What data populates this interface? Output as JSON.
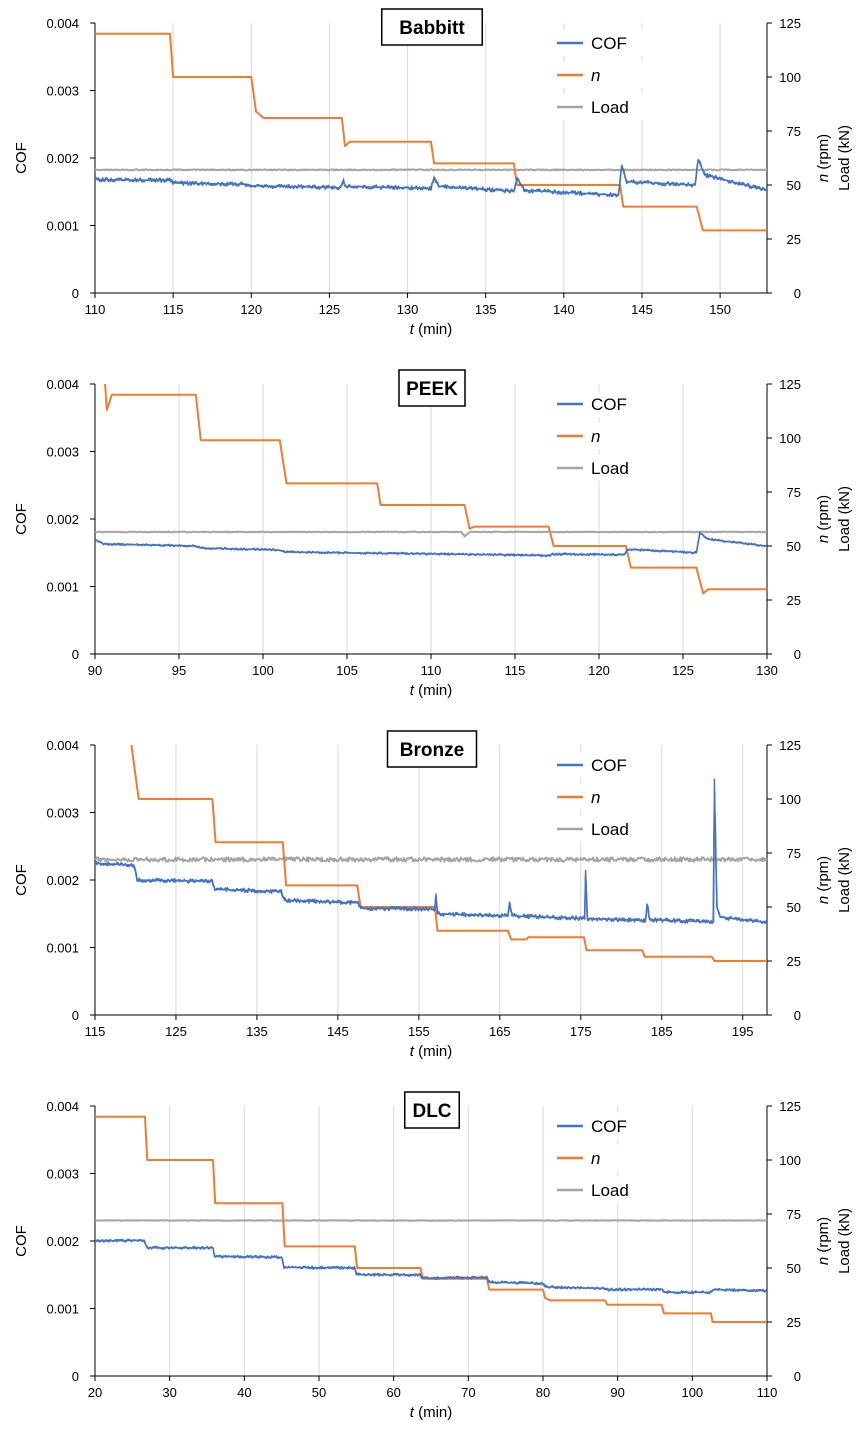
{
  "chart_data": [
    {
      "type": "line",
      "title": "Babbitt",
      "xlabel": "t (min)",
      "ylabel_left": "COF",
      "ylabel_right_1": "n (rpm)",
      "ylabel_right_2": "Load (kN)",
      "xlim": [
        110,
        153
      ],
      "xticks": [
        110,
        115,
        120,
        125,
        130,
        135,
        140,
        145,
        150
      ],
      "ylim_left": [
        0,
        0.004
      ],
      "yticks_left": [
        "0",
        "0.001",
        "0.002",
        "0.003",
        "0.004"
      ],
      "ylim_right": [
        0,
        125
      ],
      "yticks_right": [
        "0",
        "25",
        "50",
        "75",
        "100",
        "125"
      ],
      "grid": "vertical",
      "legend_position": "top-right",
      "series": [
        {
          "name": "COF",
          "axis": "left",
          "color": "#4472C4",
          "noise": 3e-05,
          "points": [
            [
              110,
              0.00168
            ],
            [
              114.8,
              0.00167
            ],
            [
              115,
              0.00163
            ],
            [
              119.8,
              0.00161
            ],
            [
              120,
              0.00159
            ],
            [
              125.7,
              0.00156
            ],
            [
              125.9,
              0.00168
            ],
            [
              126,
              0.00158
            ],
            [
              131.5,
              0.00155
            ],
            [
              131.7,
              0.00172
            ],
            [
              132,
              0.00158
            ],
            [
              136.8,
              0.00151
            ],
            [
              137,
              0.0017
            ],
            [
              137.5,
              0.00152
            ],
            [
              143.5,
              0.00145
            ],
            [
              143.7,
              0.0019
            ],
            [
              144,
              0.00165
            ],
            [
              148.4,
              0.0016
            ],
            [
              148.6,
              0.00198
            ],
            [
              149,
              0.00175
            ],
            [
              153,
              0.00152
            ]
          ]
        },
        {
          "name": "n",
          "axis": "right",
          "color": "#ED7D31",
          "noise": 0,
          "points": [
            [
              110,
              120
            ],
            [
              114.8,
              120
            ],
            [
              115,
              100
            ],
            [
              120,
              100
            ],
            [
              120.3,
              84
            ],
            [
              120.8,
              81
            ],
            [
              125.8,
              81
            ],
            [
              126,
              68
            ],
            [
              126.3,
              70
            ],
            [
              131.5,
              70
            ],
            [
              131.7,
              60
            ],
            [
              136.8,
              60
            ],
            [
              137,
              50
            ],
            [
              143.6,
              50
            ],
            [
              143.8,
              40
            ],
            [
              148.5,
              40
            ],
            [
              148.9,
              29
            ],
            [
              153,
              29
            ]
          ]
        },
        {
          "name": "Load",
          "axis": "right",
          "color": "#A5A5A5",
          "noise": 0.25,
          "points": [
            [
              110,
              57
            ],
            [
              153,
              57
            ]
          ]
        }
      ]
    },
    {
      "type": "line",
      "title": "PEEK",
      "xlabel": "t (min)",
      "ylabel_left": "COF",
      "ylabel_right_1": "n (rpm)",
      "ylabel_right_2": "Load (kN)",
      "xlim": [
        90,
        130
      ],
      "xticks": [
        90,
        95,
        100,
        105,
        110,
        115,
        120,
        125,
        130
      ],
      "ylim_left": [
        0,
        0.004
      ],
      "yticks_left": [
        "0",
        "0.001",
        "0.002",
        "0.003",
        "0.004"
      ],
      "ylim_right": [
        0,
        125
      ],
      "yticks_right": [
        "0",
        "25",
        "50",
        "75",
        "100",
        "125"
      ],
      "grid": "vertical",
      "legend_position": "top-right",
      "series": [
        {
          "name": "COF",
          "axis": "left",
          "color": "#4472C4",
          "noise": 1.5e-05,
          "points": [
            [
              90,
              0.0017
            ],
            [
              90.5,
              0.00163
            ],
            [
              96,
              0.0016
            ],
            [
              96.3,
              0.00157
            ],
            [
              101,
              0.00154
            ],
            [
              101.3,
              0.00151
            ],
            [
              111,
              0.00148
            ],
            [
              117,
              0.00146
            ],
            [
              117.3,
              0.00148
            ],
            [
              121.5,
              0.00147
            ],
            [
              121.7,
              0.00155
            ],
            [
              125.8,
              0.0015
            ],
            [
              126,
              0.0018
            ],
            [
              126.5,
              0.0017
            ],
            [
              130,
              0.0016
            ]
          ]
        },
        {
          "name": "n",
          "axis": "right",
          "color": "#ED7D31",
          "noise": 0,
          "points": [
            [
              90.6,
              125
            ],
            [
              90.7,
              113
            ],
            [
              91,
              120
            ],
            [
              96,
              120
            ],
            [
              96.3,
              99
            ],
            [
              101,
              99
            ],
            [
              101.4,
              79
            ],
            [
              106.8,
              79
            ],
            [
              107,
              69
            ],
            [
              112,
              69
            ],
            [
              112.3,
              58
            ],
            [
              112.6,
              59
            ],
            [
              117,
              59
            ],
            [
              117.3,
              50
            ],
            [
              121.6,
              50
            ],
            [
              121.9,
              40
            ],
            [
              125.8,
              40
            ],
            [
              126.2,
              28
            ],
            [
              126.5,
              30
            ],
            [
              130,
              30
            ]
          ]
        },
        {
          "name": "Load",
          "axis": "right",
          "color": "#A5A5A5",
          "noise": 0.2,
          "points": [
            [
              90,
              56.5
            ],
            [
              111.8,
              56.5
            ],
            [
              112,
              54.5
            ],
            [
              112.3,
              56.5
            ],
            [
              130,
              56.5
            ]
          ]
        }
      ]
    },
    {
      "type": "line",
      "title": "Bronze",
      "xlabel": "t (min)",
      "ylabel_left": "COF",
      "ylabel_right_1": "n (rpm)",
      "ylabel_right_2": "Load (kN)",
      "xlim": [
        115,
        198
      ],
      "xticks": [
        115,
        125,
        135,
        145,
        155,
        165,
        175,
        185,
        195
      ],
      "ylim_left": [
        0,
        0.004
      ],
      "yticks_left": [
        "0",
        "0.001",
        "0.002",
        "0.003",
        "0.004"
      ],
      "ylim_right": [
        0,
        125
      ],
      "yticks_right": [
        "0",
        "25",
        "50",
        "75",
        "100",
        "125"
      ],
      "grid": "vertical",
      "legend_position": "top-right",
      "series": [
        {
          "name": "COF",
          "axis": "left",
          "color": "#4472C4",
          "noise": 3e-05,
          "points": [
            [
              115,
              0.00225
            ],
            [
              119.8,
              0.00222
            ],
            [
              120.2,
              0.002
            ],
            [
              129.5,
              0.00198
            ],
            [
              129.8,
              0.00186
            ],
            [
              138,
              0.00183
            ],
            [
              138.4,
              0.0017
            ],
            [
              147.5,
              0.00166
            ],
            [
              147.8,
              0.00158
            ],
            [
              157,
              0.00157
            ],
            [
              157.1,
              0.0018
            ],
            [
              157.3,
              0.0015
            ],
            [
              166,
              0.00147
            ],
            [
              166.2,
              0.00168
            ],
            [
              166.5,
              0.00147
            ],
            [
              175.5,
              0.00143
            ],
            [
              175.6,
              0.00215
            ],
            [
              175.8,
              0.00143
            ],
            [
              183,
              0.0014
            ],
            [
              183.2,
              0.00165
            ],
            [
              183.5,
              0.00141
            ],
            [
              191.4,
              0.00138
            ],
            [
              191.5,
              0.0035
            ],
            [
              191.8,
              0.0016
            ],
            [
              192.2,
              0.00145
            ],
            [
              198,
              0.00137
            ]
          ]
        },
        {
          "name": "n",
          "axis": "right",
          "color": "#ED7D31",
          "noise": 0,
          "points": [
            [
              119.5,
              125
            ],
            [
              120.4,
              100
            ],
            [
              129.5,
              100
            ],
            [
              129.9,
              80
            ],
            [
              138.2,
              80
            ],
            [
              138.6,
              60
            ],
            [
              147.4,
              60
            ],
            [
              147.8,
              50
            ],
            [
              157,
              50
            ],
            [
              157.3,
              39
            ],
            [
              166,
              39
            ],
            [
              166.4,
              35
            ],
            [
              168.3,
              35
            ],
            [
              168.5,
              36
            ],
            [
              175.4,
              36
            ],
            [
              175.7,
              30
            ],
            [
              182.6,
              30
            ],
            [
              182.9,
              27
            ],
            [
              191.2,
              27
            ],
            [
              191.5,
              25
            ],
            [
              198,
              25
            ]
          ]
        },
        {
          "name": "Load",
          "axis": "right",
          "color": "#A5A5A5",
          "noise": 1.0,
          "points": [
            [
              115,
              72
            ],
            [
              198,
              72
            ]
          ]
        }
      ]
    },
    {
      "type": "line",
      "title": "DLC",
      "xlabel": "t (min)",
      "ylabel_left": "COF",
      "ylabel_right_1": "n (rpm)",
      "ylabel_right_2": "Load (kN)",
      "xlim": [
        20,
        110
      ],
      "xticks": [
        20,
        30,
        40,
        50,
        60,
        70,
        80,
        90,
        100,
        110
      ],
      "ylim_left": [
        0,
        0.004
      ],
      "yticks_left": [
        "0",
        "0.001",
        "0.002",
        "0.003",
        "0.004"
      ],
      "ylim_right": [
        0,
        125
      ],
      "yticks_right": [
        "0",
        "25",
        "50",
        "75",
        "100",
        "125"
      ],
      "grid": "vertical",
      "legend_position": "top-right",
      "series": [
        {
          "name": "COF",
          "axis": "left",
          "color": "#4472C4",
          "noise": 2e-05,
          "points": [
            [
              20,
              0.002
            ],
            [
              26.5,
              0.00201
            ],
            [
              27,
              0.0019
            ],
            [
              35.8,
              0.0019
            ],
            [
              36,
              0.00177
            ],
            [
              45,
              0.00176
            ],
            [
              45.3,
              0.00161
            ],
            [
              54.8,
              0.0016
            ],
            [
              55,
              0.0015
            ],
            [
              63.5,
              0.0015
            ],
            [
              63.8,
              0.00145
            ],
            [
              72.5,
              0.00146
            ],
            [
              72.8,
              0.00139
            ],
            [
              80,
              0.00137
            ],
            [
              80.3,
              0.00132
            ],
            [
              88,
              0.0013
            ],
            [
              88.3,
              0.00128
            ],
            [
              96,
              0.00128
            ],
            [
              96.3,
              0.00124
            ],
            [
              102.5,
              0.00124
            ],
            [
              102.8,
              0.00128
            ],
            [
              110,
              0.00126
            ]
          ]
        },
        {
          "name": "n",
          "axis": "right",
          "color": "#ED7D31",
          "noise": 0,
          "points": [
            [
              20,
              120
            ],
            [
              26.7,
              120
            ],
            [
              27,
              100
            ],
            [
              35.8,
              100
            ],
            [
              36.1,
              80
            ],
            [
              45.1,
              80
            ],
            [
              45.4,
              60
            ],
            [
              54.8,
              60
            ],
            [
              55.1,
              50
            ],
            [
              63.6,
              50
            ],
            [
              63.9,
              45
            ],
            [
              72.5,
              45
            ],
            [
              72.8,
              40
            ],
            [
              80,
              40
            ],
            [
              80.3,
              36
            ],
            [
              81,
              35
            ],
            [
              88.3,
              35
            ],
            [
              88.6,
              33
            ],
            [
              95.9,
              33
            ],
            [
              96.2,
              29
            ],
            [
              102.5,
              29
            ],
            [
              102.7,
              25
            ],
            [
              110,
              25
            ]
          ]
        },
        {
          "name": "Load",
          "axis": "right",
          "color": "#A5A5A5",
          "noise": 0.15,
          "points": [
            [
              20,
              72
            ],
            [
              110,
              72
            ]
          ]
        }
      ]
    }
  ]
}
